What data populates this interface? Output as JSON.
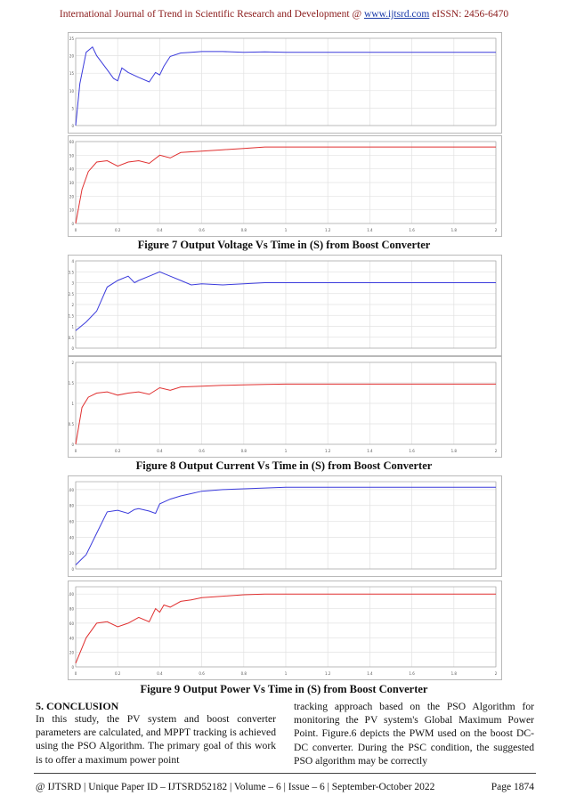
{
  "header": {
    "text_before": "International Journal of Trend in Scientific Research and Development @ ",
    "link": "www.ijtsrd.com",
    "text_after": " eISSN: 2456-6470"
  },
  "figures": [
    {
      "caption": "Figure 7 Output Voltage Vs Time in (S) from Boost Converter"
    },
    {
      "caption": "Figure 8 Output Current Vs Time in (S) from Boost Converter"
    },
    {
      "caption": "Figure 9 Output Power Vs Time in (S) from Boost Converter"
    }
  ],
  "chart_data": [
    {
      "type": "line",
      "title": "",
      "xlabel": "",
      "ylabel": "",
      "xlim": [
        0,
        2
      ],
      "ylim": [
        0,
        25
      ],
      "color": "#3b3bdc",
      "yticks": [
        0,
        5,
        10,
        15,
        20,
        25
      ],
      "x": [
        0,
        0.02,
        0.05,
        0.08,
        0.1,
        0.15,
        0.18,
        0.2,
        0.22,
        0.25,
        0.3,
        0.35,
        0.38,
        0.4,
        0.42,
        0.45,
        0.5,
        0.55,
        0.6,
        0.7,
        0.8,
        0.9,
        1.0,
        1.2,
        1.5,
        2.0
      ],
      "y": [
        0,
        12,
        21,
        22.5,
        20,
        16,
        13.5,
        12.8,
        16.5,
        15.2,
        13.8,
        12.5,
        15.2,
        14.5,
        17,
        19.8,
        20.8,
        21,
        21.2,
        21.2,
        21,
        21.1,
        21,
        21,
        21,
        21
      ]
    },
    {
      "type": "line",
      "title": "",
      "xlabel": "",
      "ylabel": "",
      "xlim": [
        0,
        2
      ],
      "ylim": [
        0,
        60
      ],
      "color": "#e03030",
      "yticks": [
        0,
        10,
        20,
        30,
        40,
        50,
        60
      ],
      "xticks": [
        0,
        0.2,
        0.4,
        0.6,
        0.8,
        1,
        1.2,
        1.4,
        1.6,
        1.8,
        2
      ],
      "x": [
        0,
        0.03,
        0.06,
        0.1,
        0.15,
        0.2,
        0.25,
        0.3,
        0.35,
        0.4,
        0.45,
        0.5,
        0.6,
        0.7,
        0.8,
        0.9,
        1.0,
        1.2,
        1.5,
        2.0
      ],
      "y": [
        0,
        25,
        38,
        45,
        46,
        42,
        45,
        46,
        44,
        50,
        48,
        52,
        53,
        54,
        55,
        56,
        56,
        56,
        56,
        56
      ]
    },
    {
      "type": "line",
      "title": "",
      "xlabel": "",
      "ylabel": "",
      "xlim": [
        0,
        2
      ],
      "ylim": [
        0,
        4
      ],
      "color": "#3b3bdc",
      "yticks": [
        0,
        0.5,
        1,
        1.5,
        2,
        2.5,
        3,
        3.5,
        4
      ],
      "x": [
        0,
        0.05,
        0.1,
        0.15,
        0.2,
        0.25,
        0.28,
        0.3,
        0.35,
        0.4,
        0.45,
        0.5,
        0.55,
        0.6,
        0.7,
        0.8,
        0.9,
        1.0,
        1.5,
        2.0
      ],
      "y": [
        0.8,
        1.2,
        1.7,
        2.8,
        3.1,
        3.3,
        3.0,
        3.1,
        3.3,
        3.5,
        3.3,
        3.1,
        2.9,
        2.95,
        2.9,
        2.95,
        3.0,
        3.0,
        3.0,
        3.0
      ]
    },
    {
      "type": "line",
      "title": "",
      "xlabel": "",
      "ylabel": "",
      "xlim": [
        0,
        2
      ],
      "ylim": [
        0,
        2
      ],
      "color": "#e03030",
      "yticks": [
        0,
        0.5,
        1,
        1.5,
        2
      ],
      "xticks": [
        0,
        0.2,
        0.4,
        0.6,
        0.8,
        1,
        1.2,
        1.4,
        1.6,
        1.8,
        2
      ],
      "x": [
        0,
        0.03,
        0.06,
        0.1,
        0.15,
        0.2,
        0.25,
        0.3,
        0.35,
        0.4,
        0.45,
        0.5,
        0.6,
        0.7,
        0.8,
        0.9,
        1.0,
        1.2,
        1.5,
        2.0
      ],
      "y": [
        0,
        0.9,
        1.15,
        1.25,
        1.28,
        1.2,
        1.25,
        1.28,
        1.22,
        1.38,
        1.32,
        1.4,
        1.42,
        1.44,
        1.45,
        1.46,
        1.47,
        1.47,
        1.47,
        1.47
      ]
    },
    {
      "type": "line",
      "title": "",
      "xlabel": "",
      "ylabel": "",
      "xlim": [
        0,
        2
      ],
      "ylim": [
        0,
        110
      ],
      "color": "#3b3bdc",
      "yticks": [
        0,
        20,
        40,
        60,
        80,
        100
      ],
      "x": [
        0,
        0.05,
        0.1,
        0.15,
        0.2,
        0.25,
        0.28,
        0.3,
        0.35,
        0.38,
        0.4,
        0.45,
        0.5,
        0.55,
        0.6,
        0.7,
        0.8,
        0.9,
        1.0,
        1.5,
        2.0
      ],
      "y": [
        5,
        18,
        45,
        72,
        74,
        70,
        75,
        76,
        73,
        70,
        82,
        88,
        92,
        95,
        98,
        100,
        101,
        102,
        103,
        103,
        103
      ]
    },
    {
      "type": "line",
      "title": "",
      "xlabel": "",
      "ylabel": "",
      "xlim": [
        0,
        2
      ],
      "ylim": [
        0,
        110
      ],
      "color": "#e03030",
      "yticks": [
        0,
        20,
        40,
        60,
        80,
        100
      ],
      "xticks": [
        0,
        0.2,
        0.4,
        0.6,
        0.8,
        1,
        1.2,
        1.4,
        1.6,
        1.8,
        2
      ],
      "x": [
        0,
        0.05,
        0.1,
        0.15,
        0.2,
        0.25,
        0.3,
        0.35,
        0.38,
        0.4,
        0.42,
        0.45,
        0.5,
        0.55,
        0.6,
        0.7,
        0.8,
        0.9,
        1.0,
        1.5,
        2.0
      ],
      "y": [
        5,
        40,
        60,
        62,
        55,
        60,
        68,
        62,
        80,
        75,
        85,
        82,
        90,
        92,
        95,
        97,
        99,
        100,
        100,
        100,
        100
      ]
    }
  ],
  "section": {
    "title": "5.   CONCLUSION"
  },
  "body": {
    "left": "In this study, the PV system and boost converter parameters are calculated, and MPPT tracking is achieved using the PSO Algorithm. The primary goal of this work is to offer a maximum power point",
    "right": "tracking approach based on the PSO Algorithm for monitoring the PV system's Global Maximum Power Point. Figure.6 depicts the PWM used on the boost DC-DC converter. During the PSC condition, the suggested PSO algorithm may be correctly"
  },
  "footer": {
    "left": "@ IJTSRD  |  Unique Paper ID – IJTSRD52182  |  Volume – 6  |  Issue – 6  |  September-October 2022",
    "right": "Page 1874"
  }
}
